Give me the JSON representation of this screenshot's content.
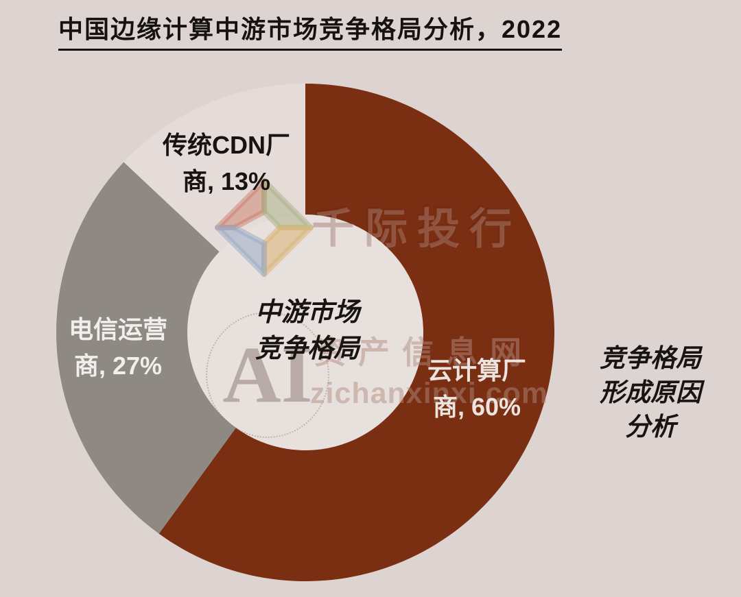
{
  "title": "中国边缘计算中游市场竞争格局分析，2022",
  "chart_data": {
    "type": "pie",
    "donut": true,
    "title": "中国边缘计算中游市场竞争格局分析，2022",
    "start_angle_deg": 0,
    "direction": "clockwise",
    "unit": "%",
    "background_color": "#ddd4d1",
    "hole_color": "#e8e0dd",
    "slices": [
      {
        "slug": "cloud-vendors",
        "name": "云计算厂商",
        "value": 60,
        "label_line1": "云计算厂",
        "label_line2": "商, 60%",
        "color": "#7a2e12",
        "label_color": "#ece4df"
      },
      {
        "slug": "telecom-operators",
        "name": "电信运营商",
        "value": 27,
        "label_line1": "电信运营",
        "label_line2": "商, 27%",
        "color": "#8f8984",
        "label_color": "#f2eeeb"
      },
      {
        "slug": "cdn-vendors",
        "name": "传统CDN厂商",
        "value": 13,
        "label_line1": "传统CDN厂",
        "label_line2": "商, 13%",
        "color": "#e5dcd9",
        "label_color": "#181310"
      }
    ],
    "center_label": {
      "line1": "中游市场",
      "line2": "竞争格局"
    }
  },
  "annotation": {
    "line1": "竞争格局",
    "line2": "形成原因",
    "line3": "分析"
  },
  "watermarks": {
    "brand": "千际投行",
    "site_name": "资产信息网",
    "site_url": "zichanxinxi.com",
    "monogram": "AI",
    "logo_colors": {
      "top_left": "rgba(200,118,98,0.45)",
      "top_right": "rgba(168,176,132,0.50)",
      "bottom_left": "rgba(148,168,200,0.50)",
      "bottom_right": "rgba(216,180,118,0.55)"
    }
  }
}
